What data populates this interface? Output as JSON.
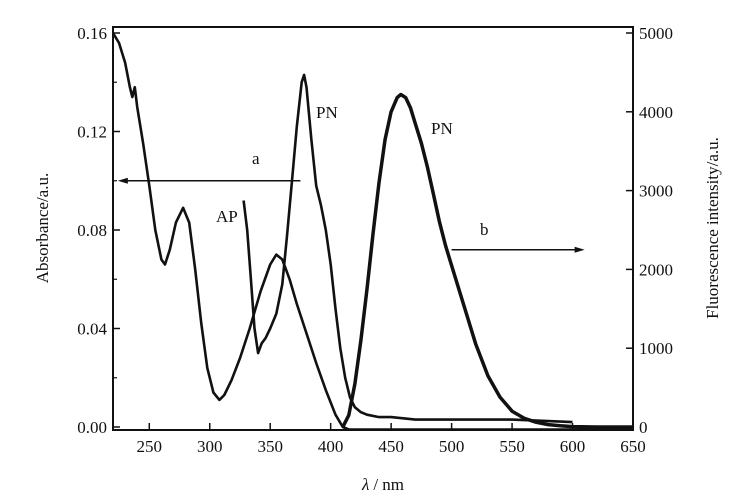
{
  "chart_data": {
    "type": "line",
    "title": "",
    "xlabel_symbol": "λ",
    "xlabel_unit": "/ nm",
    "ylabel": "Absorbance/a.u.",
    "y2label": "Fluorescence intensity/a.u.",
    "xlim": [
      220,
      650
    ],
    "ylim": [
      0,
      0.16
    ],
    "y2lim": [
      0,
      5000
    ],
    "xticks": [
      250,
      300,
      350,
      400,
      450,
      500,
      550,
      600,
      650
    ],
    "yticks": [
      "0.00",
      "0.04",
      "0.08",
      "0.12",
      "0.16"
    ],
    "y2ticks": [
      "0",
      "1000",
      "2000",
      "3000",
      "4000",
      "5000"
    ],
    "grid": false,
    "series": [
      {
        "name": "AP absorption",
        "axis": "left",
        "x": [
          220,
          225,
          230,
          234,
          236,
          238,
          240,
          245,
          250,
          255,
          260,
          263,
          267,
          272,
          278,
          283,
          288,
          293,
          298,
          303,
          308,
          312,
          318,
          325,
          333,
          342,
          350,
          355,
          360,
          366,
          372,
          380,
          388,
          396,
          404,
          410,
          415,
          430,
          460,
          500,
          600,
          650
        ],
        "y": [
          0.16,
          0.156,
          0.148,
          0.138,
          0.134,
          0.138,
          0.13,
          0.115,
          0.098,
          0.08,
          0.068,
          0.066,
          0.072,
          0.083,
          0.089,
          0.083,
          0.064,
          0.042,
          0.024,
          0.014,
          0.011,
          0.013,
          0.019,
          0.028,
          0.04,
          0.055,
          0.066,
          0.07,
          0.068,
          0.06,
          0.05,
          0.038,
          0.026,
          0.015,
          0.005,
          0.0,
          -0.001,
          -0.001,
          -0.001,
          -0.001,
          -0.001,
          -0.001
        ]
      },
      {
        "name": "PN absorption",
        "axis": "left",
        "x": [
          328,
          331,
          334,
          337,
          340,
          343,
          346,
          350,
          355,
          360,
          364,
          368,
          372,
          376,
          378,
          380,
          384,
          388,
          392,
          396,
          400,
          404,
          408,
          412,
          416,
          420,
          425,
          430,
          440,
          450,
          470,
          500,
          550,
          600
        ],
        "y": [
          0.092,
          0.08,
          0.06,
          0.04,
          0.03,
          0.034,
          0.036,
          0.04,
          0.046,
          0.058,
          0.078,
          0.1,
          0.122,
          0.14,
          0.143,
          0.138,
          0.117,
          0.098,
          0.09,
          0.08,
          0.066,
          0.048,
          0.032,
          0.02,
          0.012,
          0.008,
          0.006,
          0.005,
          0.004,
          0.004,
          0.003,
          0.003,
          0.003,
          0.002
        ]
      },
      {
        "name": "PN fluorescence",
        "axis": "right",
        "x": [
          410,
          415,
          420,
          425,
          430,
          435,
          440,
          445,
          450,
          455,
          458,
          462,
          466,
          470,
          475,
          480,
          485,
          490,
          495,
          500,
          510,
          520,
          530,
          540,
          550,
          560,
          570,
          580,
          590,
          600,
          620,
          650
        ],
        "y": [
          0,
          150,
          550,
          1100,
          1750,
          2450,
          3100,
          3650,
          4000,
          4180,
          4220,
          4180,
          4050,
          3850,
          3600,
          3300,
          2950,
          2600,
          2300,
          2050,
          1550,
          1050,
          650,
          380,
          200,
          110,
          60,
          30,
          15,
          5,
          0,
          0
        ]
      }
    ],
    "annotations": {
      "curve_label_ap": "AP",
      "curve_label_pn_abs": "PN",
      "curve_label_pn_fl": "PN",
      "arrow_a": "a",
      "arrow_b": "b"
    }
  }
}
